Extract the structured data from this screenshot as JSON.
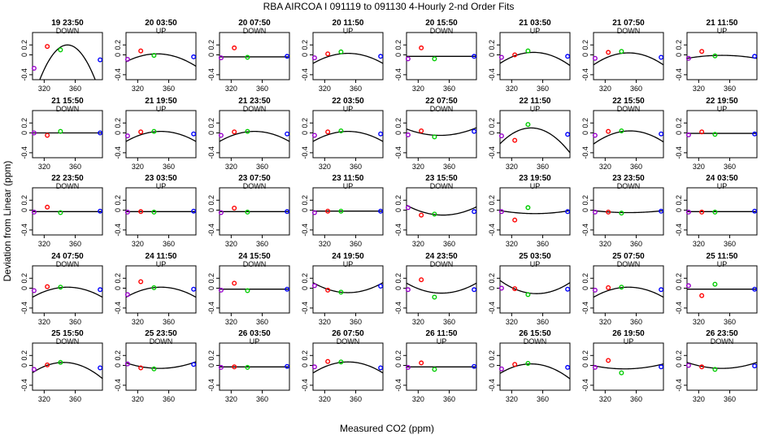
{
  "figure": {
    "title": "RBA   AIRCOA I   091119 to 091130   4-Hourly 2-nd Order Fits",
    "xlabel": "Measured CO2 (ppm)",
    "ylabel": "Deviation from Linear (ppm)"
  },
  "chart_data": {
    "type": "scatter",
    "layout": {
      "rows": 5,
      "cols": 8
    },
    "xlim": [
      305,
      395
    ],
    "ylim": [
      -0.5,
      0.45
    ],
    "x_ticks": [
      320,
      360
    ],
    "y_ticks": [
      -0.4,
      0,
      0.2
    ],
    "y_tick_labels": [
      "-0.4",
      "0",
      "0.2"
    ],
    "x_tick_labels": [
      "320",
      "360"
    ],
    "standard_x": [
      307,
      324,
      341,
      392
    ],
    "standard_colors": [
      "#9900cc",
      "#ff0000",
      "#00cc00",
      "#0000ff"
    ],
    "curve_color": "#000000",
    "panels": [
      {
        "label": "19 23:50",
        "dir": "DOWN",
        "y": [
          -0.27,
          0.17,
          0.1,
          -0.1
        ],
        "c": [
          0.2,
          350,
          0.00055
        ]
      },
      {
        "label": "20 03:50",
        "dir": "UP",
        "y": [
          -0.09,
          0.08,
          -0.01,
          -0.04
        ],
        "c": [
          0.02,
          345,
          0.0001
        ]
      },
      {
        "label": "20 07:50",
        "dir": "DOWN",
        "y": [
          -0.06,
          0.14,
          -0.05,
          -0.03
        ],
        "c": [
          -0.04,
          350,
          0
        ]
      },
      {
        "label": "20 11:50",
        "dir": "UP",
        "y": [
          -0.06,
          0.02,
          0.06,
          -0.03
        ],
        "c": [
          0.03,
          350,
          0.0001
        ]
      },
      {
        "label": "20 15:50",
        "dir": "DOWN",
        "y": [
          -0.08,
          0.14,
          -0.08,
          -0.03
        ],
        "c": [
          -0.03,
          350,
          0
        ]
      },
      {
        "label": "21 03:50",
        "dir": "UP",
        "y": [
          -0.05,
          0.0,
          0.08,
          -0.03
        ],
        "c": [
          0.05,
          348,
          0.00012
        ]
      },
      {
        "label": "21 07:50",
        "dir": "DOWN",
        "y": [
          -0.07,
          0.05,
          0.07,
          -0.05
        ],
        "c": [
          0.04,
          350,
          0.00012
        ]
      },
      {
        "label": "21 11:50",
        "dir": "UP",
        "y": [
          -0.07,
          0.07,
          -0.02,
          -0.03
        ],
        "c": [
          -0.01,
          350,
          3e-05
        ]
      },
      {
        "label": "21 15:50",
        "dir": "DOWN",
        "y": [
          0.0,
          -0.05,
          0.03,
          0.0
        ],
        "c": [
          0.0,
          350,
          0
        ]
      },
      {
        "label": "21 19:50",
        "dir": "UP",
        "y": [
          -0.06,
          0.02,
          0.03,
          -0.02
        ],
        "c": [
          0.03,
          350,
          0.0001
        ]
      },
      {
        "label": "21 23:50",
        "dir": "DOWN",
        "y": [
          -0.05,
          0.02,
          0.03,
          -0.02
        ],
        "c": [
          0.03,
          350,
          0.0001
        ]
      },
      {
        "label": "22 03:50",
        "dir": "UP",
        "y": [
          -0.05,
          0.02,
          0.04,
          -0.02
        ],
        "c": [
          0.03,
          350,
          0.0001
        ]
      },
      {
        "label": "22 07:50",
        "dir": "DOWN",
        "y": [
          -0.04,
          0.04,
          -0.08,
          0.03
        ],
        "c": [
          -0.05,
          348,
          -7e-05
        ]
      },
      {
        "label": "22 11:50",
        "dir": "UP",
        "y": [
          -0.06,
          -0.15,
          0.17,
          -0.03
        ],
        "c": [
          0.1,
          345,
          0.0002
        ]
      },
      {
        "label": "22 15:50",
        "dir": "DOWN",
        "y": [
          -0.05,
          0.03,
          0.04,
          -0.02
        ],
        "c": [
          0.04,
          352,
          0.00012
        ]
      },
      {
        "label": "22 19:50",
        "dir": "UP",
        "y": [
          -0.04,
          0.02,
          -0.03,
          -0.02
        ],
        "c": [
          -0.01,
          350,
          0
        ]
      },
      {
        "label": "22 23:50",
        "dir": "DOWN",
        "y": [
          -0.04,
          0.06,
          -0.05,
          -0.02
        ],
        "c": [
          -0.03,
          350,
          0
        ]
      },
      {
        "label": "23 03:50",
        "dir": "UP",
        "y": [
          -0.04,
          -0.03,
          -0.04,
          -0.02
        ],
        "c": [
          -0.03,
          350,
          0
        ]
      },
      {
        "label": "23 07:50",
        "dir": "DOWN",
        "y": [
          -0.05,
          0.04,
          -0.04,
          -0.03
        ],
        "c": [
          -0.03,
          350,
          0
        ]
      },
      {
        "label": "23 11:50",
        "dir": "UP",
        "y": [
          -0.05,
          -0.02,
          -0.02,
          -0.02
        ],
        "c": [
          -0.02,
          350,
          0
        ]
      },
      {
        "label": "23 15:50",
        "dir": "DOWN",
        "y": [
          0.05,
          -0.1,
          -0.08,
          -0.03
        ],
        "c": [
          -0.1,
          352,
          -9e-05
        ]
      },
      {
        "label": "23 19:50",
        "dir": "UP",
        "y": [
          -0.03,
          -0.2,
          0.05,
          -0.03
        ],
        "c": [
          -0.07,
          350,
          -3e-05
        ]
      },
      {
        "label": "23 23:50",
        "dir": "DOWN",
        "y": [
          -0.04,
          -0.04,
          -0.06,
          -0.02
        ],
        "c": [
          -0.05,
          350,
          -2e-05
        ]
      },
      {
        "label": "24 03:50",
        "dir": "UP",
        "y": [
          -0.04,
          -0.04,
          -0.04,
          -0.02
        ],
        "c": [
          -0.03,
          350,
          0
        ]
      },
      {
        "label": "24 07:50",
        "dir": "DOWN",
        "y": [
          -0.05,
          0.03,
          0.02,
          -0.03
        ],
        "c": [
          0.02,
          350,
          0.0001
        ]
      },
      {
        "label": "24 11:50",
        "dir": "UP",
        "y": [
          -0.13,
          0.13,
          0.01,
          -0.02
        ],
        "c": [
          0.02,
          350,
          0.0001
        ]
      },
      {
        "label": "24 15:50",
        "dir": "DOWN",
        "y": [
          -0.04,
          0.1,
          -0.05,
          -0.02
        ],
        "c": [
          -0.02,
          350,
          0
        ]
      },
      {
        "label": "24 19:50",
        "dir": "UP",
        "y": [
          0.05,
          -0.04,
          -0.08,
          0.04
        ],
        "c": [
          -0.09,
          350,
          -0.0001
        ]
      },
      {
        "label": "24 23:50",
        "dir": "DOWN",
        "y": [
          -0.03,
          0.17,
          -0.18,
          -0.03
        ],
        "c": [
          -0.1,
          350,
          -0.0001
        ]
      },
      {
        "label": "25 03:50",
        "dir": "UP",
        "y": [
          0.0,
          -0.01,
          -0.13,
          -0.02
        ],
        "c": [
          -0.11,
          352,
          -0.00012
        ]
      },
      {
        "label": "25 07:50",
        "dir": "DOWN",
        "y": [
          -0.04,
          0.01,
          0.02,
          -0.03
        ],
        "c": [
          0.02,
          350,
          0.0001
        ]
      },
      {
        "label": "25 11:50",
        "dir": "UP",
        "y": [
          0.05,
          -0.15,
          0.08,
          -0.02
        ],
        "c": [
          -0.02,
          350,
          0
        ]
      },
      {
        "label": "25 15:50",
        "dir": "DOWN",
        "y": [
          -0.08,
          0.01,
          0.06,
          -0.05
        ],
        "c": [
          0.06,
          345,
          0.00013
        ]
      },
      {
        "label": "25 23:50",
        "dir": "DOWN",
        "y": [
          0.03,
          -0.05,
          -0.07,
          0.02
        ],
        "c": [
          -0.06,
          348,
          -6e-05
        ]
      },
      {
        "label": "26 03:50",
        "dir": "UP",
        "y": [
          -0.04,
          -0.03,
          -0.04,
          -0.02
        ],
        "c": [
          -0.03,
          350,
          0
        ]
      },
      {
        "label": "26 07:50",
        "dir": "DOWN",
        "y": [
          -0.03,
          0.08,
          0.07,
          -0.05
        ],
        "c": [
          0.07,
          350,
          0.00011
        ]
      },
      {
        "label": "26 11:50",
        "dir": "UP",
        "y": [
          -0.04,
          0.05,
          -0.08,
          -0.02
        ],
        "c": [
          -0.03,
          350,
          0
        ]
      },
      {
        "label": "26 15:50",
        "dir": "DOWN",
        "y": [
          -0.07,
          0.02,
          0.04,
          -0.04
        ],
        "c": [
          0.03,
          345,
          0.00012
        ]
      },
      {
        "label": "26 19:50",
        "dir": "UP",
        "y": [
          -0.04,
          0.1,
          -0.15,
          -0.03
        ],
        "c": [
          -0.07,
          345,
          -4e-05
        ]
      },
      {
        "label": "26 23:50",
        "dir": "DOWN",
        "y": [
          0.0,
          -0.03,
          -0.08,
          -0.01
        ],
        "c": [
          -0.06,
          350,
          -6e-05
        ]
      }
    ]
  }
}
